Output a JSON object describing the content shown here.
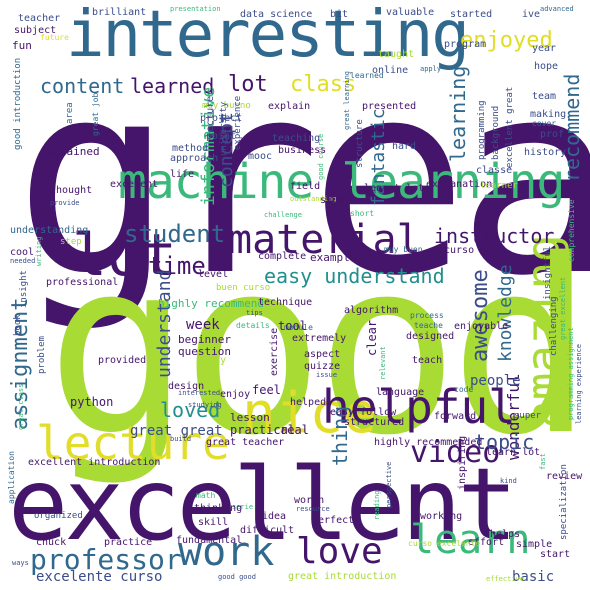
{
  "palette": {
    "darkPurple": "#45156b",
    "indigo": "#3b4d8a",
    "blue": "#31688e",
    "teal": "#218f8d",
    "green": "#3ab97b",
    "lime": "#a8db34",
    "yellow": "#e1dd28"
  },
  "words": {
    "great": "great",
    "good": "good",
    "excellent": "excellent",
    "interesting": "interesting",
    "machine_learning": "machine learning",
    "material": "material",
    "lot": "lot",
    "nice": "nice",
    "helpful": "helpful",
    "lecture": "lecture",
    "amazing": "amazing",
    "learn": "learn",
    "work": "work",
    "love": "love",
    "professor": "professor",
    "enjoyed": "enjoyed",
    "content": "content",
    "learned": "learned",
    "lot_small": "lot",
    "class": "class",
    "recommend": "recommend",
    "student": "student",
    "time": "time",
    "instructor": "instructor",
    "easy_understand": "easy understand",
    "video": "video",
    "awesome": "awesome",
    "knowledge": "knowledge",
    "assignment": "assignment",
    "loved": "loved",
    "wonderful": "wonderful",
    "thing": "thing",
    "topic": "topic",
    "understand": "understand",
    "fantastic": "fantastic",
    "informative": "informative",
    "concept": "concept",
    "learning": "learning",
    "great_great": "great great",
    "people": "people",
    "basic": "basic",
    "excelente_curso": "excelente curso",
    "teacher": "teacher",
    "subject": "subject",
    "fun": "fun",
    "brilliant": "brilliant",
    "data_science": "data science",
    "presentation": "presentation",
    "bit": "bit",
    "valuable": "valuable",
    "started": "started",
    "ive": "ive",
    "advanced": "advanced",
    "future": "future",
    "taught": "taught",
    "program": "program",
    "year": "year",
    "online": "online",
    "apply": "apply",
    "hope": "hope",
    "explained": "explained",
    "explain": "explain",
    "presented": "presented",
    "teaching": "teaching",
    "business": "business",
    "hard": "hard",
    "approach": "approach",
    "mooc": "mooc",
    "life": "life",
    "method": "method",
    "project": "project",
    "muy_bueno": "muy bueno",
    "point": "point",
    "excelent": "excelent",
    "field": "field",
    "learnt_lot": "learnt lot",
    "explanation": "explanation",
    "thought": "thought",
    "study": "study",
    "understanding": "understanding",
    "curso_muy": "curso muy",
    "examples": "examples",
    "complete": "complete",
    "level": "level",
    "buen_curso": "buen curso",
    "highly_recommend": "highly recommend",
    "technique": "technique",
    "algorithm": "algorithm",
    "professional": "professional",
    "week": "week",
    "tool": "tool",
    "beginner": "beginner",
    "question": "question",
    "happy": "happy",
    "extremely": "extremely",
    "exercise": "exercise",
    "designed": "designed",
    "teach": "teach",
    "enjoyable": "enjoyable",
    "provided": "provided",
    "python": "python",
    "design": "design",
    "enjoy": "enjoy",
    "feel": "feel",
    "language": "language",
    "helped": "helped",
    "easy_follow": "easy follow",
    "lesson": "lesson",
    "practical": "practical",
    "great_teacher": "great teacher",
    "real": "real",
    "structured": "structured",
    "forward": "forward",
    "highly_recommended": "highly recommended",
    "learn_lot": "learn lot",
    "excellent_introduction": "excellent introduction",
    "thinking": "thinking",
    "skill": "skill",
    "idea": "idea",
    "difficult": "difficult",
    "perfect": "perfect",
    "organized": "organized",
    "chuck": "chuck",
    "practice": "practice",
    "fundamental": "fundamental",
    "working": "working",
    "review": "review",
    "simple": "simple",
    "start": "start",
    "helps": "helps",
    "great_introduction": "great introduction",
    "curso_excelente": "curso excelente",
    "effort": "effort",
    "good_introduction": "good introduction",
    "area": "area",
    "great_job": "great job",
    "lecturer": "lecturer",
    "university": "university",
    "experience": "experience",
    "good_course": "good course",
    "structure": "structure",
    "programming": "programming",
    "background": "background",
    "excellent_great": "excellent great",
    "great_learning": "great learning",
    "cover": "cover",
    "making": "making",
    "team": "team",
    "prof": "prof",
    "history": "history",
    "classe": "classe",
    "comprehensive": "comprehensive",
    "outstanding": "outstanding",
    "provide": "provide",
    "learner": "learner",
    "short": "short",
    "challenge": "challenge",
    "muy_buen": "muy buen",
    "cool": "cool",
    "needed": "needed",
    "step": "step",
    "insight": "insight",
    "insightful": "insightful",
    "writing": "writing",
    "details": "details",
    "book": "book",
    "problem": "problem",
    "tips": "tips",
    "module": "module",
    "clear": "clear",
    "process": "process",
    "teache": "teache",
    "relevant": "relevant",
    "aspect": "aspect",
    "quizze": "quizze",
    "code": "code",
    "challenging": "challenging",
    "great_excellent": "great excellent",
    "programming_assignment": "programming assignment",
    "learning_experience": "learning experience",
    "super": "super",
    "math": "math",
    "application": "application",
    "serie": "serie",
    "great_class": "great class",
    "interested": "interested",
    "studying": "studying",
    "build": "build",
    "perspective": "perspective",
    "reading": "reading",
    "resource": "resource",
    "worth": "worth",
    "inspiring": "inspiring",
    "specialization": "specialization",
    "effective": "effective",
    "good_good": "good good",
    "ways": "ways",
    "kind": "kind",
    "issue": "issue",
    "fast": "fast"
  }
}
